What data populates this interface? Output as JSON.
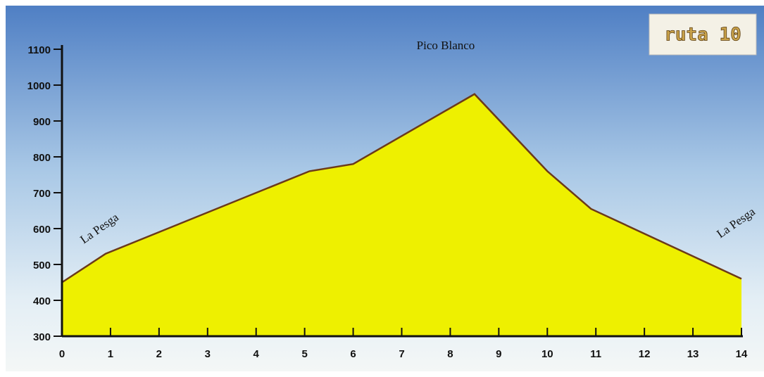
{
  "chart_data": {
    "type": "area",
    "x": [
      0,
      0.9,
      5.1,
      6,
      8.5,
      10,
      10.9,
      14
    ],
    "values": [
      450,
      530,
      760,
      780,
      975,
      760,
      655,
      460
    ],
    "color": "#eef000",
    "line_color": "#6b3a1a",
    "xlim": [
      0,
      14
    ],
    "xticks": [
      0,
      1,
      2,
      3,
      4,
      5,
      6,
      7,
      8,
      9,
      10,
      11,
      12,
      13,
      14
    ],
    "ylim": [
      300,
      1100
    ],
    "yticks": [
      300,
      400,
      500,
      600,
      700,
      800,
      900,
      1000,
      1100
    ],
    "grid": false,
    "annotations": [
      "La Pesga",
      "Pico Blanco",
      "La Pesga"
    ],
    "badge": "ruta 10"
  }
}
